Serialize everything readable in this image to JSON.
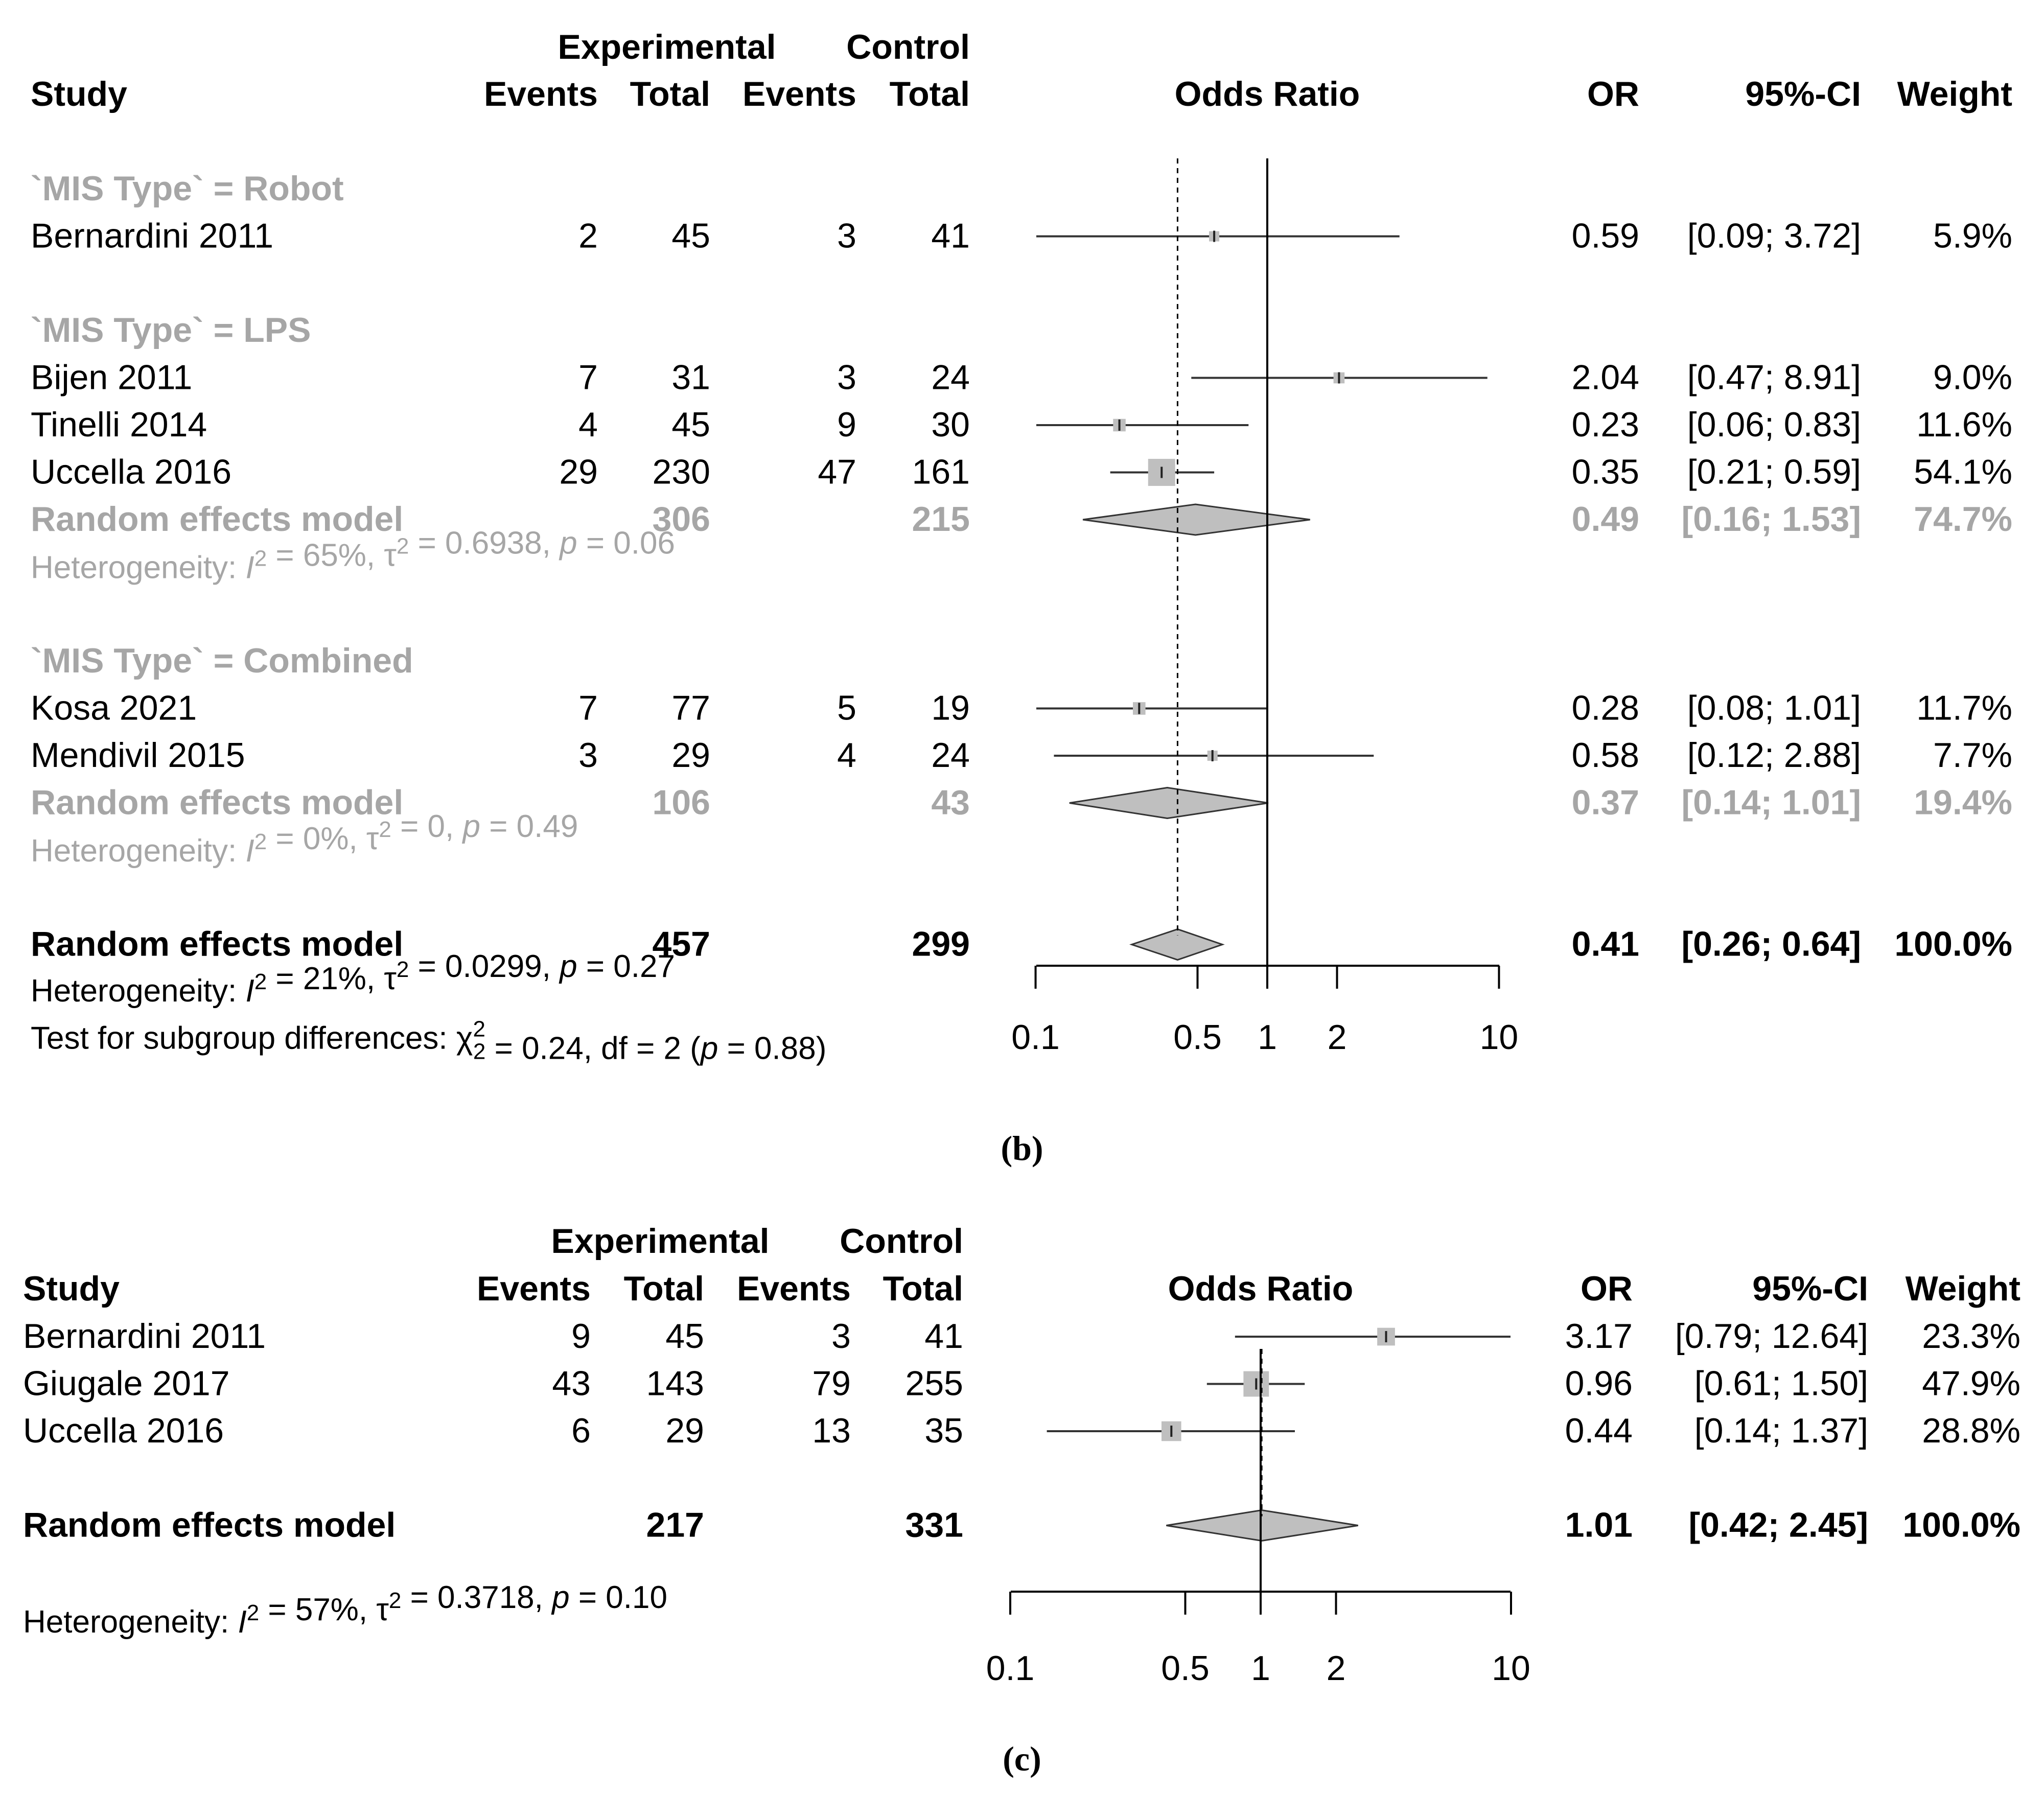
{
  "chart_data": [
    {
      "id": "b",
      "type": "forest",
      "caption": "(b)",
      "headers": {
        "study": "Study",
        "experimental": "Experimental",
        "control": "Control",
        "events": "Events",
        "total": "Total",
        "effect": "Odds Ratio",
        "or": "OR",
        "ci": "95%-CI",
        "weight": "Weight"
      },
      "axis": {
        "scale": "log",
        "ticks": [
          "0.1",
          "0.5",
          "1",
          "2",
          "10"
        ],
        "null_value": 1,
        "pooled_line": 0.41
      },
      "rows": [
        {
          "kind": "group",
          "label": "`MIS Type` = Robot"
        },
        {
          "kind": "study",
          "study": "Bernardini 2011",
          "e_events": "2",
          "e_total": "45",
          "c_events": "3",
          "c_total": "41",
          "or": 0.59,
          "lo": 0.09,
          "hi": 3.72,
          "or_text": "0.59",
          "ci_text": "[0.09; 3.72]",
          "weight_text": "5.9%",
          "weight": 5.9
        },
        {
          "kind": "spacer"
        },
        {
          "kind": "group",
          "label": "`MIS Type` = LPS"
        },
        {
          "kind": "study",
          "study": "Bijen 2011",
          "e_events": "7",
          "e_total": "31",
          "c_events": "3",
          "c_total": "24",
          "or": 2.04,
          "lo": 0.47,
          "hi": 8.91,
          "or_text": "2.04",
          "ci_text": "[0.47; 8.91]",
          "weight_text": "9.0%",
          "weight": 9.0
        },
        {
          "kind": "study",
          "study": "Tinelli 2014",
          "e_events": "4",
          "e_total": "45",
          "c_events": "9",
          "c_total": "30",
          "or": 0.23,
          "lo": 0.06,
          "hi": 0.83,
          "or_text": "0.23",
          "ci_text": "[0.06; 0.83]",
          "weight_text": "11.6%",
          "weight": 11.6
        },
        {
          "kind": "study",
          "study": "Uccella 2016",
          "e_events": "29",
          "e_total": "230",
          "c_events": "47",
          "c_total": "161",
          "or": 0.35,
          "lo": 0.21,
          "hi": 0.59,
          "or_text": "0.35",
          "ci_text": "[0.21; 0.59]",
          "weight_text": "54.1%",
          "weight": 54.1
        },
        {
          "kind": "subtotal",
          "study": "Random effects model",
          "e_total": "306",
          "c_total": "215",
          "or": 0.49,
          "lo": 0.16,
          "hi": 1.53,
          "or_text": "0.49",
          "ci_text": "[0.16; 1.53]",
          "weight_text": "74.7%"
        },
        {
          "kind": "het",
          "parts": [
            {
              "t": "Heterogeneity: "
            },
            {
              "t": "I",
              "it": true
            },
            {
              "t": "2",
              "sup": true
            },
            {
              "t": " = 65%, τ"
            },
            {
              "t": "2",
              "sup": true
            },
            {
              "t": " = 0.6938, "
            },
            {
              "t": "p",
              "it": true
            },
            {
              "t": " = 0.06"
            }
          ]
        },
        {
          "kind": "spacer"
        },
        {
          "kind": "group",
          "label": "`MIS Type` = Combined"
        },
        {
          "kind": "study",
          "study": "Kosa 2021",
          "e_events": "7",
          "e_total": "77",
          "c_events": "5",
          "c_total": "19",
          "or": 0.28,
          "lo": 0.08,
          "hi": 1.01,
          "or_text": "0.28",
          "ci_text": "[0.08; 1.01]",
          "weight_text": "11.7%",
          "weight": 11.7
        },
        {
          "kind": "study",
          "study": "Mendivil 2015",
          "e_events": "3",
          "e_total": "29",
          "c_events": "4",
          "c_total": "24",
          "or": 0.58,
          "lo": 0.12,
          "hi": 2.88,
          "or_text": "0.58",
          "ci_text": "[0.12; 2.88]",
          "weight_text": "7.7%",
          "weight": 7.7
        },
        {
          "kind": "subtotal",
          "study": "Random effects model",
          "e_total": "106",
          "c_total": "43",
          "or": 0.37,
          "lo": 0.14,
          "hi": 1.01,
          "or_text": "0.37",
          "ci_text": "[0.14; 1.01]",
          "weight_text": "19.4%"
        },
        {
          "kind": "het",
          "parts": [
            {
              "t": "Heterogeneity: "
            },
            {
              "t": "I",
              "it": true
            },
            {
              "t": "2",
              "sup": true
            },
            {
              "t": " = 0%, τ"
            },
            {
              "t": "2",
              "sup": true
            },
            {
              "t": " = 0, "
            },
            {
              "t": "p",
              "it": true
            },
            {
              "t": " = 0.49"
            }
          ]
        },
        {
          "kind": "spacer"
        },
        {
          "kind": "total",
          "study": "Random effects model",
          "e_total": "457",
          "c_total": "299",
          "or": 0.41,
          "lo": 0.26,
          "hi": 0.64,
          "or_text": "0.41",
          "ci_text": "[0.26; 0.64]",
          "weight_text": "100.0%"
        }
      ],
      "footer": [
        [
          {
            "t": "Heterogeneity: "
          },
          {
            "t": "I",
            "it": true
          },
          {
            "t": "2",
            "sup": true
          },
          {
            "t": " = 21%, τ"
          },
          {
            "t": "2",
            "sup": true
          },
          {
            "t": " = 0.0299, "
          },
          {
            "t": "p",
            "it": true
          },
          {
            "t": " = 0.27"
          }
        ],
        [
          {
            "t": "Test for subgroup differences: χ"
          },
          {
            "t": "2",
            "sup": true,
            "sub2": "2"
          },
          {
            "t": " = 0.24, df = 2 ("
          },
          {
            "t": "p",
            "it": true
          },
          {
            "t": " = 0.88)"
          }
        ]
      ]
    },
    {
      "id": "c",
      "type": "forest",
      "caption": "(c)",
      "headers": {
        "study": "Study",
        "experimental": "Experimental",
        "control": "Control",
        "events": "Events",
        "total": "Total",
        "effect": "Odds Ratio",
        "or": "OR",
        "ci": "95%-CI",
        "weight": "Weight"
      },
      "axis": {
        "scale": "log",
        "ticks": [
          "0.1",
          "0.5",
          "1",
          "2",
          "10"
        ],
        "null_value": 1,
        "pooled_line": 1.01
      },
      "rows": [
        {
          "kind": "spacer"
        },
        {
          "kind": "study",
          "study": "Bernardini 2011",
          "e_events": "9",
          "e_total": "45",
          "c_events": "3",
          "c_total": "41",
          "or": 3.17,
          "lo": 0.79,
          "hi": 12.64,
          "or_text": "3.17",
          "ci_text": "[0.79; 12.64]",
          "weight_text": "23.3%",
          "weight": 23.3
        },
        {
          "kind": "study",
          "study": "Giugale 2017",
          "e_events": "43",
          "e_total": "143",
          "c_events": "79",
          "c_total": "255",
          "or": 0.96,
          "lo": 0.61,
          "hi": 1.5,
          "or_text": "0.96",
          "ci_text": "[0.61;  1.50]",
          "weight_text": "47.9%",
          "weight": 47.9
        },
        {
          "kind": "study",
          "study": "Uccella 2016",
          "e_events": "6",
          "e_total": "29",
          "c_events": "13",
          "c_total": "35",
          "or": 0.44,
          "lo": 0.14,
          "hi": 1.37,
          "or_text": "0.44",
          "ci_text": "[0.14;  1.37]",
          "weight_text": "28.8%",
          "weight": 28.8
        },
        {
          "kind": "spacer"
        },
        {
          "kind": "total",
          "study": "Random effects model",
          "e_total": "217",
          "c_total": "331",
          "or": 1.01,
          "lo": 0.42,
          "hi": 2.45,
          "or_text": "1.01",
          "ci_text": "[0.42;  2.45]",
          "weight_text": "100.0%"
        }
      ],
      "footer": [
        [
          {
            "t": "Heterogeneity: "
          },
          {
            "t": "I",
            "it": true
          },
          {
            "t": "2",
            "sup": true
          },
          {
            "t": " = 57%, τ"
          },
          {
            "t": "2",
            "sup": true
          },
          {
            "t": " = 0.3718, "
          },
          {
            "t": "p",
            "it": true
          },
          {
            "t": " = 0.10"
          }
        ]
      ]
    }
  ]
}
